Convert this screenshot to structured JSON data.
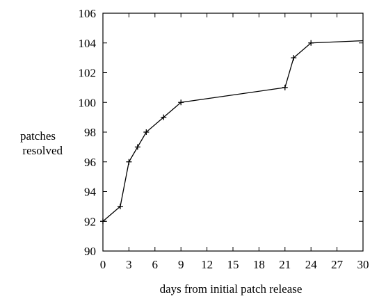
{
  "chart_data": {
    "type": "line",
    "title": "",
    "xlabel": "days from initial patch release",
    "ylabel_lines": [
      "patches",
      "resolved"
    ],
    "xlim": [
      0,
      30
    ],
    "ylim": [
      90,
      106
    ],
    "xticks": [
      0,
      3,
      6,
      9,
      12,
      15,
      18,
      21,
      24,
      27,
      30
    ],
    "yticks": [
      90,
      92,
      94,
      96,
      98,
      100,
      102,
      104,
      106
    ],
    "grid": false,
    "legend": "none",
    "line_color": "#000000",
    "marker": "plus",
    "series": [
      {
        "x": [
          0,
          2,
          3,
          4,
          5,
          7,
          9,
          21,
          22,
          24,
          30
        ],
        "y": [
          92,
          93,
          96,
          97,
          98,
          99,
          100,
          101,
          103,
          104,
          104.15
        ]
      }
    ]
  }
}
